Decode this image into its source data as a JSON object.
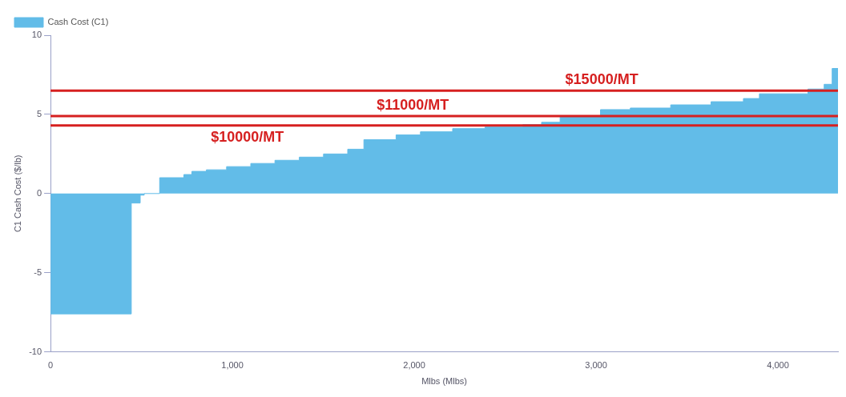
{
  "chart_data": {
    "type": "area",
    "xlabel": "Mlbs (Mlbs)",
    "ylabel": "C1 Cash Cost ($/lb)",
    "series": [
      {
        "name": "Cash Cost (C1)",
        "color": "#62bce8",
        "x": [
          0,
          444,
          444,
          493,
          493,
          515,
          515,
          600,
          600,
          733,
          733,
          777,
          777,
          857,
          857,
          968,
          968,
          1101,
          1101,
          1234,
          1234,
          1368,
          1368,
          1501,
          1501,
          1634,
          1634,
          1723,
          1723,
          1900,
          1900,
          2034,
          2034,
          2211,
          2211,
          2389,
          2389,
          2597,
          2597,
          2700,
          2700,
          2802,
          2802,
          3024,
          3024,
          3188,
          3188,
          3410,
          3410,
          3632,
          3632,
          3810,
          3810,
          3898,
          3898,
          4165,
          4165,
          4254,
          4254,
          4298,
          4298,
          4330
        ],
        "values": [
          -7.6,
          -7.6,
          -0.6,
          -0.6,
          -0.1,
          -0.1,
          0,
          0,
          1.0,
          1.0,
          1.2,
          1.2,
          1.4,
          1.4,
          1.5,
          1.5,
          1.7,
          1.7,
          1.9,
          1.9,
          2.1,
          2.1,
          2.3,
          2.3,
          2.5,
          2.5,
          2.8,
          2.8,
          3.4,
          3.4,
          3.7,
          3.7,
          3.9,
          3.9,
          4.1,
          4.1,
          4.2,
          4.2,
          4.35,
          4.35,
          4.5,
          4.5,
          4.9,
          4.9,
          5.3,
          5.3,
          5.4,
          5.4,
          5.6,
          5.6,
          5.8,
          5.8,
          6.0,
          6.0,
          6.3,
          6.3,
          6.6,
          6.6,
          6.9,
          6.9,
          7.9,
          7.9
        ]
      }
    ],
    "xlim": [
      0,
      4330
    ],
    "xticks": [
      0,
      {
        "value": 1000,
        "label": "1,000"
      },
      {
        "value": 2000,
        "label": "2,000"
      },
      {
        "value": 3000,
        "label": "3,000"
      },
      {
        "value": 4000,
        "label": "4,000"
      }
    ],
    "ylim": [
      -10,
      10
    ],
    "yticks": [
      -10,
      -5,
      0,
      5,
      10
    ],
    "ref_lines": [
      {
        "axis": "y",
        "value": 6.5,
        "label": "$15000/MT",
        "color": "#d62020"
      },
      {
        "axis": "y",
        "value": 4.9,
        "label": "$11000/MT",
        "color": "#d62020"
      },
      {
        "axis": "y",
        "value": 4.3,
        "label": "$10000/MT",
        "color": "#d62020"
      }
    ],
    "legend": "top left",
    "grid": false
  }
}
